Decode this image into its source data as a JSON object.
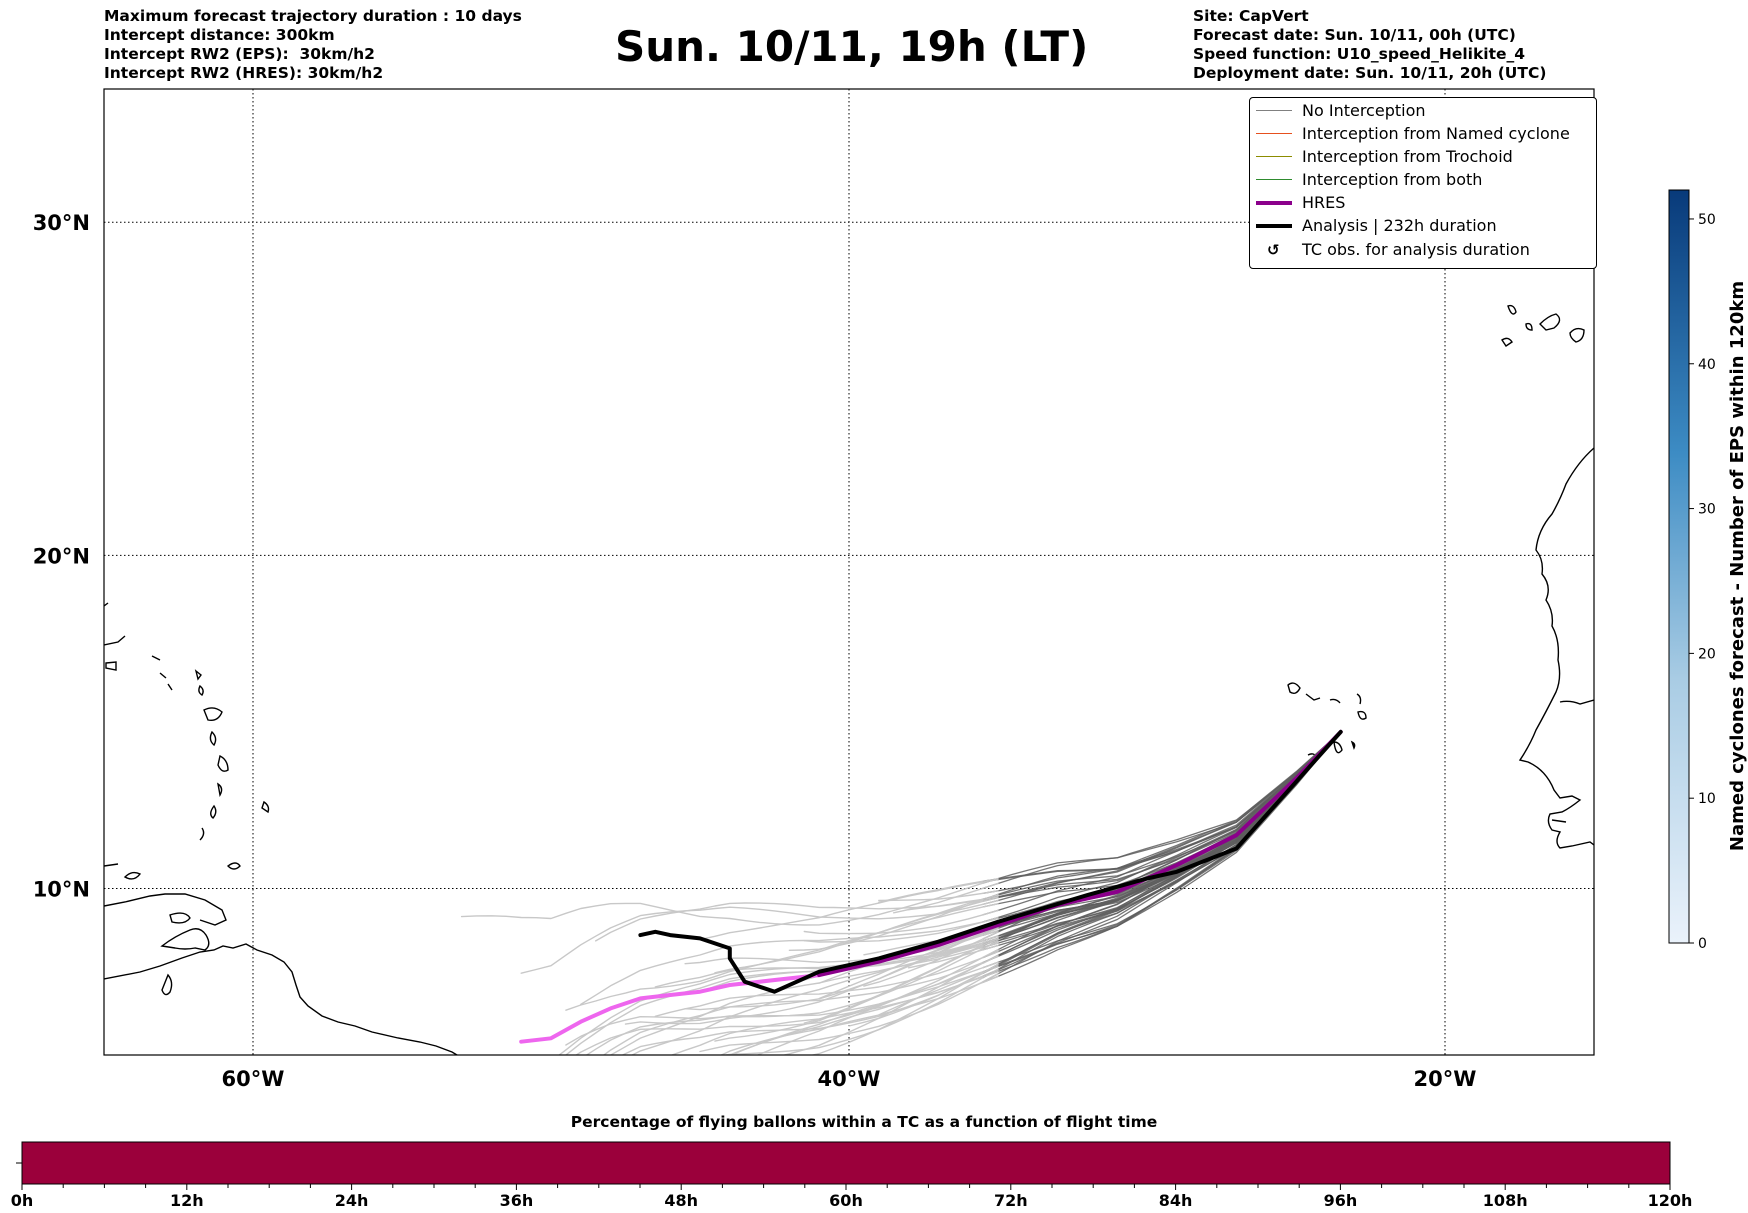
{
  "header": {
    "left": [
      "Maximum forecast trajectory duration : 10 days",
      "Intercept distance: 300km",
      "Intercept RW2 (EPS):  30km/h2",
      "Intercept RW2 (HRES): 30km/h2"
    ],
    "title": "Sun. 10/11, 19h (LT)",
    "right": [
      "Site: CapVert",
      "Forecast date: Sun. 10/11, 00h (UTC)",
      "Speed function: U10_speed_Helikite_4",
      "Deployment date: Sun. 10/11, 20h (UTC)"
    ]
  },
  "map": {
    "lon_range": [
      -65,
      -15
    ],
    "lat_range": [
      5,
      34
    ],
    "lon_ticks": [
      {
        "value": -60,
        "label": "60°W"
      },
      {
        "value": -40,
        "label": "40°W"
      },
      {
        "value": -20,
        "label": "20°W"
      }
    ],
    "lat_ticks": [
      {
        "value": 30,
        "label": "30°N"
      },
      {
        "value": 20,
        "label": "20°N"
      },
      {
        "value": 10,
        "label": "10°N"
      }
    ],
    "colors": {
      "no_interception": "#808080",
      "named_cyclone": "#e6501e",
      "trochoid": "#8c8c00",
      "both": "#2e8b2e",
      "hres": "#8b008b",
      "hres_beyond": "#ee66ee",
      "analysis": "#000000"
    }
  },
  "legend": {
    "items": [
      {
        "label": "No Interception",
        "style": "thin-gray"
      },
      {
        "label": "Interception from Named cyclone",
        "style": "thin-red"
      },
      {
        "label": "Interception from Trochoid",
        "style": "thin-olive"
      },
      {
        "label": "Interception from both",
        "style": "thin-green"
      },
      {
        "label": "HRES",
        "style": "thick-purple"
      },
      {
        "label": "Analysis | 232h duration",
        "style": "thick-black"
      },
      {
        "label": "TC obs. for analysis duration",
        "style": "tc-symbol"
      }
    ]
  },
  "colorbar_right": {
    "label": "Named cyclones forecast - Number of EPS within 120km",
    "ticks": [
      "0",
      "10",
      "20",
      "30",
      "40",
      "50"
    ],
    "min": 0,
    "max": 52,
    "color_low": "#eaf2fb",
    "color_high": "#083a7a"
  },
  "colorbar_bottom": {
    "title": "Percentage of flying ballons within a TC as a function of flight time",
    "ticks": [
      "0h",
      "12h",
      "24h",
      "36h",
      "48h",
      "60h",
      "72h",
      "84h",
      "96h",
      "108h",
      "120h"
    ],
    "fill_color": "#9b003b",
    "fill_fraction": 1.0
  },
  "chart_data": {
    "type": "line",
    "x_unit": "longitude (deg, negative = W)",
    "y_unit": "latitude (deg N)",
    "series": [
      {
        "name": "Analysis | 232h duration",
        "points": [
          [
            -23.5,
            14.7
          ],
          [
            -25,
            13.2
          ],
          [
            -27,
            11.2
          ],
          [
            -29,
            10.5
          ],
          [
            -30,
            10.3
          ],
          [
            -32,
            9.8
          ],
          [
            -35,
            9.0
          ],
          [
            -37,
            8.4
          ],
          [
            -39,
            7.9
          ],
          [
            -41,
            7.5
          ],
          [
            -42.5,
            6.9
          ],
          [
            -43.5,
            7.2
          ],
          [
            -44,
            7.9
          ],
          [
            -44,
            8.2
          ],
          [
            -45,
            8.5
          ],
          [
            -46,
            8.6
          ],
          [
            -46.5,
            8.7
          ],
          [
            -47,
            8.6
          ]
        ]
      },
      {
        "name": "HRES",
        "points": [
          [
            -23.5,
            14.7
          ],
          [
            -25,
            13.3
          ],
          [
            -27,
            11.6
          ],
          [
            -29,
            10.7
          ],
          [
            -31,
            9.9
          ],
          [
            -33,
            9.5
          ],
          [
            -35,
            8.9
          ],
          [
            -37,
            8.3
          ],
          [
            -39,
            7.8
          ],
          [
            -41,
            7.4
          ],
          [
            -42,
            7.3
          ],
          [
            -43,
            7.2
          ],
          [
            -44,
            7.1
          ],
          [
            -45,
            6.9
          ],
          [
            -46,
            6.8
          ],
          [
            -47,
            6.7
          ],
          [
            -48,
            6.4
          ],
          [
            -49,
            6.0
          ],
          [
            -50,
            5.5
          ],
          [
            -51,
            5.4
          ]
        ]
      }
    ]
  }
}
